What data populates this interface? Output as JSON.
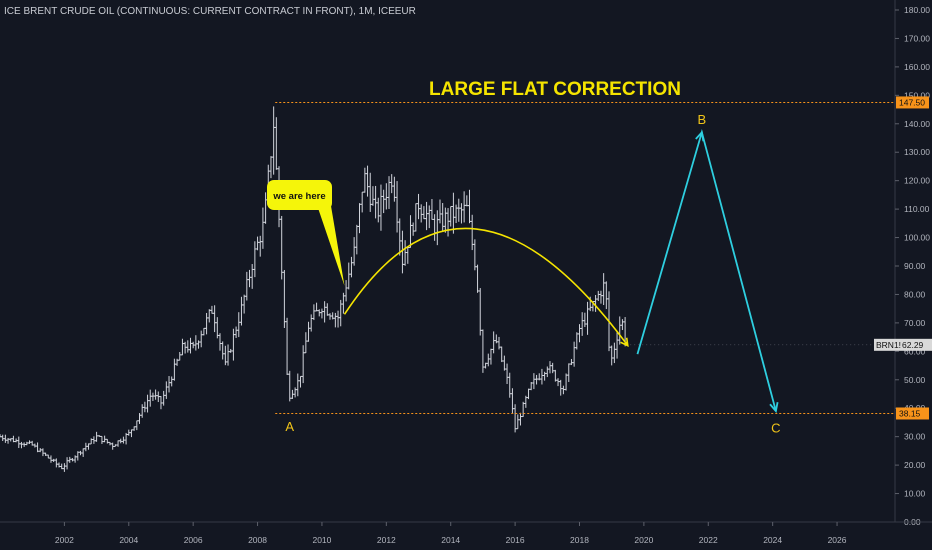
{
  "header": {
    "symbol_text": "ICE BRENT CRUDE OIL (CONTINUOUS: CURRENT CONTRACT IN FRONT), 1M, ICEEUR"
  },
  "title": "LARGE FLAT CORRECTION",
  "callout": "we are here",
  "wave_labels": {
    "a": "A",
    "b": "B",
    "c": "C"
  },
  "levels": {
    "top": {
      "value": 147.5,
      "label": "147.50",
      "color": "#f7931a"
    },
    "bottom": {
      "value": 38.15,
      "label": "38.15",
      "color": "#f7931a"
    }
  },
  "last_price": {
    "symbol": "BRN1!",
    "value": 62.29,
    "label": "62.29"
  },
  "colors": {
    "background": "#131722",
    "bars": "#d1d4dc",
    "level_line": "#f7931a",
    "title": "#f5e400",
    "arc": "#f5e400",
    "projection": "#2ecfe0",
    "wave_label": "#f0c419"
  },
  "chart_data": {
    "type": "ohlc",
    "interval": "1M",
    "x_axis": {
      "ticks": [
        "2002",
        "2004",
        "2006",
        "2008",
        "2010",
        "2012",
        "2014",
        "2016",
        "2018",
        "2020",
        "2022",
        "2024",
        "2026"
      ],
      "range": [
        2000.0,
        2027.8
      ]
    },
    "y_axis": {
      "ticks": [
        "0.00",
        "10.00",
        "20.00",
        "30.00",
        "40.00",
        "50.00",
        "60.00",
        "70.00",
        "80.00",
        "90.00",
        "100.00",
        "110.00",
        "120.00",
        "130.00",
        "140.00",
        "150.00",
        "160.00",
        "170.00",
        "180.00"
      ],
      "range": [
        0,
        180
      ],
      "position": "right"
    },
    "anchors": [
      {
        "year": 2000.0,
        "close": 30
      },
      {
        "year": 2001.0,
        "close": 27
      },
      {
        "year": 2001.9,
        "close": 19
      },
      {
        "year": 2002.5,
        "close": 25
      },
      {
        "year": 2003.0,
        "close": 30
      },
      {
        "year": 2003.5,
        "close": 27
      },
      {
        "year": 2004.0,
        "close": 31
      },
      {
        "year": 2004.7,
        "close": 45
      },
      {
        "year": 2005.0,
        "close": 42
      },
      {
        "year": 2005.7,
        "close": 62
      },
      {
        "year": 2006.0,
        "close": 61
      },
      {
        "year": 2006.6,
        "close": 75
      },
      {
        "year": 2007.0,
        "close": 55
      },
      {
        "year": 2007.5,
        "close": 75
      },
      {
        "year": 2007.9,
        "close": 94
      },
      {
        "year": 2008.2,
        "close": 105
      },
      {
        "year": 2008.5,
        "close": 140
      },
      {
        "year": 2008.7,
        "close": 100
      },
      {
        "year": 2008.95,
        "close": 44
      },
      {
        "year": 2009.3,
        "close": 50
      },
      {
        "year": 2009.6,
        "close": 70
      },
      {
        "year": 2010.0,
        "close": 76
      },
      {
        "year": 2010.5,
        "close": 72
      },
      {
        "year": 2011.0,
        "close": 95
      },
      {
        "year": 2011.3,
        "close": 122
      },
      {
        "year": 2011.7,
        "close": 108
      },
      {
        "year": 2012.2,
        "close": 122
      },
      {
        "year": 2012.5,
        "close": 92
      },
      {
        "year": 2013.0,
        "close": 112
      },
      {
        "year": 2013.5,
        "close": 104
      },
      {
        "year": 2014.0,
        "close": 108
      },
      {
        "year": 2014.5,
        "close": 110
      },
      {
        "year": 2014.8,
        "close": 88
      },
      {
        "year": 2015.0,
        "close": 55
      },
      {
        "year": 2015.4,
        "close": 64
      },
      {
        "year": 2015.8,
        "close": 48
      },
      {
        "year": 2016.0,
        "close": 33
      },
      {
        "year": 2016.5,
        "close": 48
      },
      {
        "year": 2017.0,
        "close": 55
      },
      {
        "year": 2017.5,
        "close": 47
      },
      {
        "year": 2018.0,
        "close": 68
      },
      {
        "year": 2018.8,
        "close": 84
      },
      {
        "year": 2018.95,
        "close": 55
      },
      {
        "year": 2019.3,
        "close": 72
      },
      {
        "year": 2019.45,
        "close": 62.29
      }
    ],
    "arc": {
      "start": {
        "year": 2010.7,
        "value": 73
      },
      "peak": {
        "year": 2014.8,
        "value": 103
      },
      "end": {
        "year": 2019.5,
        "value": 62
      }
    },
    "callout_pointer": {
      "year": 2010.7,
      "value": 83
    },
    "projection": [
      {
        "year": 2019.8,
        "value": 59
      },
      {
        "year": 2021.8,
        "value": 137
      },
      {
        "year": 2024.1,
        "value": 39
      }
    ]
  }
}
